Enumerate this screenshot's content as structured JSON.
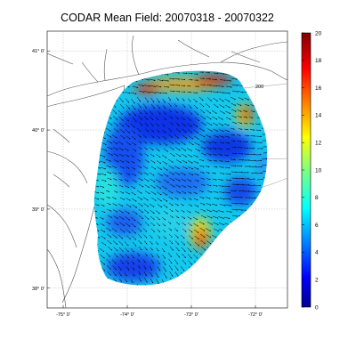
{
  "title": "CODAR Mean Field: 20070318 - 20070322",
  "map": {
    "lon_range": [
      -75.25,
      -71.5
    ],
    "lat_range": [
      37.75,
      41.25
    ],
    "lon_ticks": [
      {
        "value": -75,
        "label": "-75° 0'"
      },
      {
        "value": -74,
        "label": "-74° 0'"
      },
      {
        "value": -73,
        "label": "-73° 0'"
      },
      {
        "value": -72,
        "label": "-72° 0'"
      }
    ],
    "lat_ticks": [
      {
        "value": 41,
        "label": "41° 0'"
      },
      {
        "value": 40,
        "label": "40° 0'"
      },
      {
        "value": 39,
        "label": "39° 0'"
      },
      {
        "value": 38,
        "label": "38° 0'"
      }
    ],
    "grid": "dashed",
    "isobath_labels": [
      "200",
      "200"
    ],
    "colors": {
      "land_line": "#555555",
      "isobath": "#999999",
      "arrow": "#000000"
    }
  },
  "colorbar": {
    "range": [
      0,
      20
    ],
    "ticks": [
      "0",
      "2",
      "4",
      "6",
      "8",
      "10",
      "12",
      "14",
      "16",
      "18",
      "20"
    ],
    "colormap": "jet",
    "placement": "right"
  }
}
